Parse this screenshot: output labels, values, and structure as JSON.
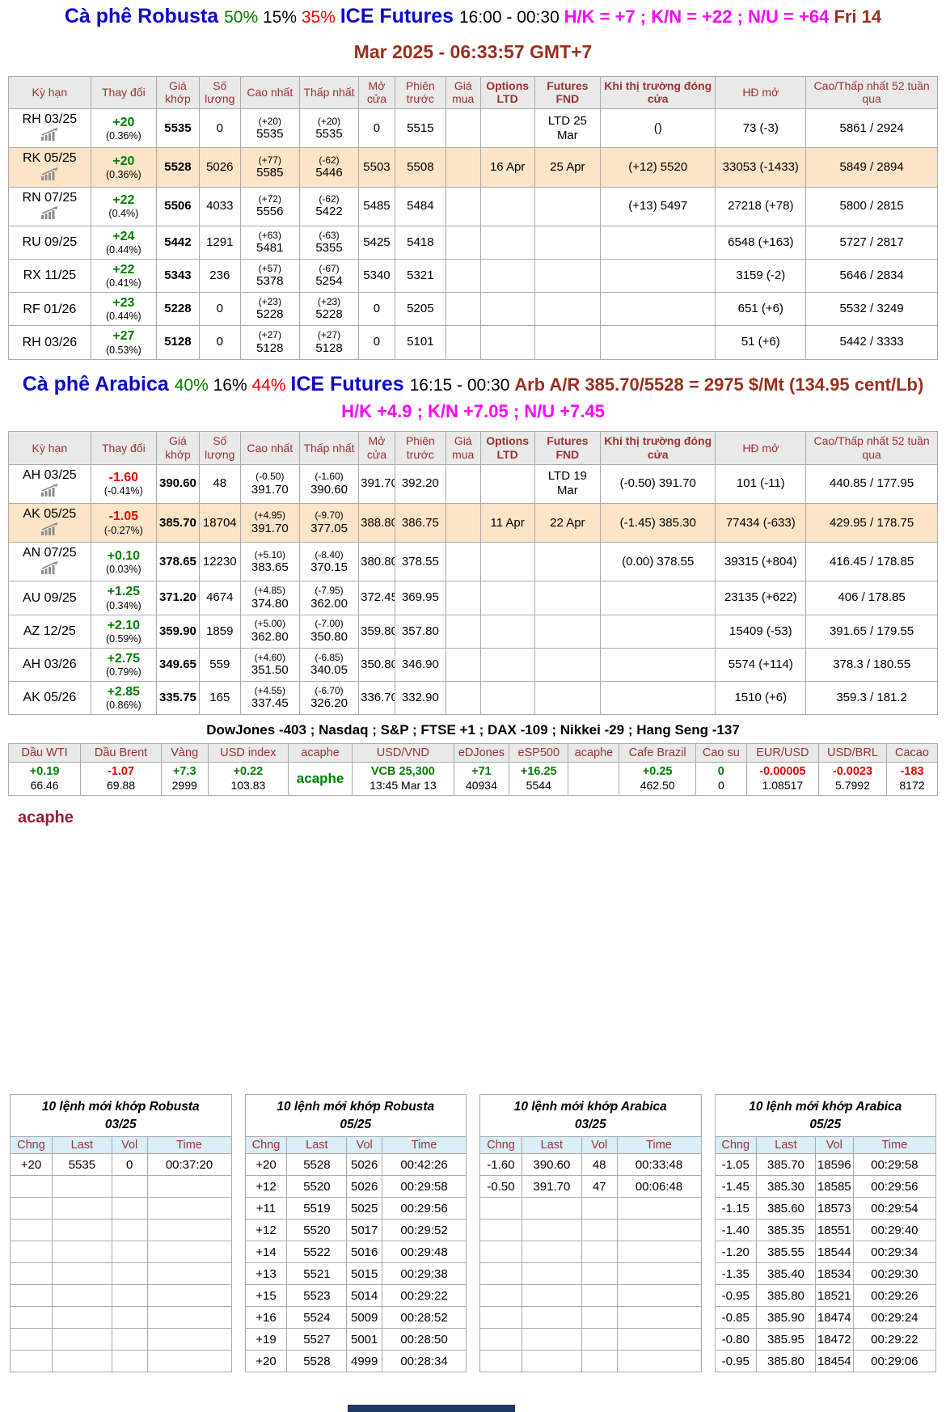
{
  "theme": {
    "blue": "#0b0bcc",
    "green": "#008000",
    "red": "#ee0000",
    "magenta": "#ff00ff",
    "brown": "#99301e",
    "header_red": "#993333",
    "row_highlight": "#fbe4c8",
    "table_header_bg": "#e9e9e9",
    "order_header_bg": "#d9eef7",
    "footer_navy": "#203864"
  },
  "robusta": {
    "headline": {
      "segments": [
        {
          "text": "Cà phê Robusta ",
          "cls": "blue big"
        },
        {
          "text": "50% ",
          "cls": "green"
        },
        {
          "text": "15% ",
          "cls": "black"
        },
        {
          "text": "35% ",
          "cls": "red"
        },
        {
          "text": "ICE Futures ",
          "cls": "blue big"
        },
        {
          "text": "16:00 - 00:30 ",
          "cls": "black"
        },
        {
          "text": "H/K = +7 ; K/N = +22 ; N/U = +64 ",
          "cls": "magenta"
        },
        {
          "text": "Fri 14",
          "cls": "brown"
        }
      ],
      "line2": "Mar 2025 - 06:33:57 GMT+7"
    },
    "table": {
      "headers": [
        {
          "label": "Kỳ hạn",
          "bold": false
        },
        {
          "label": "Thay đổi",
          "bold": false
        },
        {
          "label": "Giá khớp",
          "bold": false
        },
        {
          "label": "Số lượng",
          "bold": false
        },
        {
          "label": "Cao nhất",
          "bold": false
        },
        {
          "label": "Thấp nhất",
          "bold": false
        },
        {
          "label": "Mở cửa",
          "bold": false
        },
        {
          "label": "Phiên trước",
          "bold": false
        },
        {
          "label": "Giá mua",
          "bold": false
        },
        {
          "label": "Options LTD",
          "bold": true
        },
        {
          "label": "Futures FND",
          "bold": true
        },
        {
          "label": "Khi thị trường đóng cửa",
          "bold": true
        },
        {
          "label": "HĐ mở",
          "bold": false
        },
        {
          "label": "Cao/Thấp nhất 52 tuần qua",
          "bold": false
        }
      ],
      "rows": [
        {
          "contract": "RH 03/25",
          "icon": true,
          "dir": "up",
          "chg": "+20",
          "pct": "(0.36%)",
          "last": "5535",
          "vol": "0",
          "hi_n": "(+20)",
          "hi": "5535",
          "lo_n": "(+20)",
          "lo": "5535",
          "open": "0",
          "prev": "5515",
          "buy": "",
          "opt": "",
          "fnd": "LTD 25 Mar",
          "close": "()",
          "oi": "73 (-3)",
          "wk": "5861 / 2924",
          "hl": false
        },
        {
          "contract": "RK 05/25",
          "icon": true,
          "dir": "up",
          "chg": "+20",
          "pct": "(0.36%)",
          "last": "5528",
          "vol": "5026",
          "hi_n": "(+77)",
          "hi": "5585",
          "lo_n": "(-62)",
          "lo": "5446",
          "open": "5503",
          "prev": "5508",
          "buy": "",
          "opt": "16 Apr",
          "fnd": "25 Apr",
          "close": "(+12) 5520",
          "oi": "33053 (-1433)",
          "wk": "5849 / 2894",
          "hl": true
        },
        {
          "contract": "RN 07/25",
          "icon": true,
          "dir": "up",
          "chg": "+22",
          "pct": "(0.4%)",
          "last": "5506",
          "vol": "4033",
          "hi_n": "(+72)",
          "hi": "5556",
          "lo_n": "(-62)",
          "lo": "5422",
          "open": "5485",
          "prev": "5484",
          "buy": "",
          "opt": "",
          "fnd": "",
          "close": "(+13) 5497",
          "oi": "27218 (+78)",
          "wk": "5800 / 2815",
          "hl": false
        },
        {
          "contract": "RU 09/25",
          "icon": false,
          "dir": "up",
          "chg": "+24",
          "pct": "(0.44%)",
          "last": "5442",
          "vol": "1291",
          "hi_n": "(+63)",
          "hi": "5481",
          "lo_n": "(-63)",
          "lo": "5355",
          "open": "5425",
          "prev": "5418",
          "buy": "",
          "opt": "",
          "fnd": "",
          "close": "",
          "oi": "6548 (+163)",
          "wk": "5727 / 2817",
          "hl": false
        },
        {
          "contract": "RX 11/25",
          "icon": false,
          "dir": "up",
          "chg": "+22",
          "pct": "(0.41%)",
          "last": "5343",
          "vol": "236",
          "hi_n": "(+57)",
          "hi": "5378",
          "lo_n": "(-67)",
          "lo": "5254",
          "open": "5340",
          "prev": "5321",
          "buy": "",
          "opt": "",
          "fnd": "",
          "close": "",
          "oi": "3159 (-2)",
          "wk": "5646 / 2834",
          "hl": false
        },
        {
          "contract": "RF 01/26",
          "icon": false,
          "dir": "up",
          "chg": "+23",
          "pct": "(0.44%)",
          "last": "5228",
          "vol": "0",
          "hi_n": "(+23)",
          "hi": "5228",
          "lo_n": "(+23)",
          "lo": "5228",
          "open": "0",
          "prev": "5205",
          "buy": "",
          "opt": "",
          "fnd": "",
          "close": "",
          "oi": "651 (+6)",
          "wk": "5532 / 3249",
          "hl": false
        },
        {
          "contract": "RH 03/26",
          "icon": false,
          "dir": "up",
          "chg": "+27",
          "pct": "(0.53%)",
          "last": "5128",
          "vol": "0",
          "hi_n": "(+27)",
          "hi": "5128",
          "lo_n": "(+27)",
          "lo": "5128",
          "open": "0",
          "prev": "5101",
          "buy": "",
          "opt": "",
          "fnd": "",
          "close": "",
          "oi": "51 (+6)",
          "wk": "5442 / 3333",
          "hl": false
        }
      ]
    }
  },
  "arabica": {
    "headline": {
      "segments": [
        {
          "text": "Cà phê Arabica ",
          "cls": "blue big"
        },
        {
          "text": "40% ",
          "cls": "green"
        },
        {
          "text": "16% ",
          "cls": "black"
        },
        {
          "text": "44% ",
          "cls": "red"
        },
        {
          "text": "ICE Futures ",
          "cls": "blue big"
        },
        {
          "text": "16:15 - 00:30 ",
          "cls": "black"
        },
        {
          "text": "Arb A/R 385.70/5528 = 2975 $/Mt (134.95 cent/Lb) ",
          "cls": "brown"
        },
        {
          "text": "H/K +4.9 ; K/N +7.05 ; N/U +7.45",
          "cls": "magenta"
        }
      ]
    },
    "table": {
      "headers": [
        {
          "label": "Kỳ hạn",
          "bold": false
        },
        {
          "label": "Thay đổi",
          "bold": false
        },
        {
          "label": "Giá khớp",
          "bold": false
        },
        {
          "label": "Số lượng",
          "bold": false
        },
        {
          "label": "Cao nhất",
          "bold": false
        },
        {
          "label": "Thấp nhất",
          "bold": false
        },
        {
          "label": "Mở cửa",
          "bold": false
        },
        {
          "label": "Phiên trước",
          "bold": false
        },
        {
          "label": "Giá mua",
          "bold": false
        },
        {
          "label": "Options LTD",
          "bold": true
        },
        {
          "label": "Futures FND",
          "bold": true
        },
        {
          "label": "Khi thị trường đóng cửa",
          "bold": true
        },
        {
          "label": "HĐ mở",
          "bold": false
        },
        {
          "label": "Cao/Thấp nhất 52 tuần qua",
          "bold": false
        }
      ],
      "rows": [
        {
          "contract": "AH 03/25",
          "icon": true,
          "dir": "down",
          "chg": "-1.60",
          "pct": "(-0.41%)",
          "last": "390.60",
          "vol": "48",
          "hi_n": "(-0.50)",
          "hi": "391.70",
          "lo_n": "(-1.60)",
          "lo": "390.60",
          "open": "391.70",
          "prev": "392.20",
          "buy": "",
          "opt": "",
          "fnd": "LTD 19 Mar",
          "close": "(-0.50) 391.70",
          "oi": "101 (-11)",
          "wk": "440.85 / 177.95",
          "hl": false
        },
        {
          "contract": "AK 05/25",
          "icon": true,
          "dir": "down",
          "chg": "-1.05",
          "pct": "(-0.27%)",
          "last": "385.70",
          "vol": "18704",
          "hi_n": "(+4.95)",
          "hi": "391.70",
          "lo_n": "(-9.70)",
          "lo": "377.05",
          "open": "388.80",
          "prev": "386.75",
          "buy": "",
          "opt": "11 Apr",
          "fnd": "22 Apr",
          "close": "(-1.45) 385.30",
          "oi": "77434 (-633)",
          "wk": "429.95 / 178.75",
          "hl": true
        },
        {
          "contract": "AN 07/25",
          "icon": true,
          "dir": "up",
          "chg": "+0.10",
          "pct": "(0.03%)",
          "last": "378.65",
          "vol": "12230",
          "hi_n": "(+5.10)",
          "hi": "383.65",
          "lo_n": "(-8.40)",
          "lo": "370.15",
          "open": "380.80",
          "prev": "378.55",
          "buy": "",
          "opt": "",
          "fnd": "",
          "close": "(0.00) 378.55",
          "oi": "39315 (+804)",
          "wk": "416.45 / 178.85",
          "hl": false
        },
        {
          "contract": "AU 09/25",
          "icon": false,
          "dir": "up",
          "chg": "+1.25",
          "pct": "(0.34%)",
          "last": "371.20",
          "vol": "4674",
          "hi_n": "(+4.85)",
          "hi": "374.80",
          "lo_n": "(-7.95)",
          "lo": "362.00",
          "open": "372.45",
          "prev": "369.95",
          "buy": "",
          "opt": "",
          "fnd": "",
          "close": "",
          "oi": "23135 (+622)",
          "wk": "406 / 178.85",
          "hl": false
        },
        {
          "contract": "AZ 12/25",
          "icon": false,
          "dir": "up",
          "chg": "+2.10",
          "pct": "(0.59%)",
          "last": "359.90",
          "vol": "1859",
          "hi_n": "(+5.00)",
          "hi": "362.80",
          "lo_n": "(-7.00)",
          "lo": "350.80",
          "open": "359.80",
          "prev": "357.80",
          "buy": "",
          "opt": "",
          "fnd": "",
          "close": "",
          "oi": "15409 (-53)",
          "wk": "391.65 / 179.55",
          "hl": false
        },
        {
          "contract": "AH 03/26",
          "icon": false,
          "dir": "up",
          "chg": "+2.75",
          "pct": "(0.79%)",
          "last": "349.65",
          "vol": "559",
          "hi_n": "(+4.60)",
          "hi": "351.50",
          "lo_n": "(-6.85)",
          "lo": "340.05",
          "open": "350.80",
          "prev": "346.90",
          "buy": "",
          "opt": "",
          "fnd": "",
          "close": "",
          "oi": "5574 (+114)",
          "wk": "378.3 / 180.55",
          "hl": false
        },
        {
          "contract": "AK 05/26",
          "icon": false,
          "dir": "up",
          "chg": "+2.85",
          "pct": "(0.86%)",
          "last": "335.75",
          "vol": "165",
          "hi_n": "(+4.55)",
          "hi": "337.45",
          "lo_n": "(-6.70)",
          "lo": "326.20",
          "open": "336.70",
          "prev": "332.90",
          "buy": "",
          "opt": "",
          "fnd": "",
          "close": "",
          "oi": "1510 (+6)",
          "wk": "359.3 / 181.2",
          "hl": false
        }
      ]
    }
  },
  "indices_line": "DowJones -403 ; Nasdaq ; S&P ; FTSE +1 ; DAX -109 ; Nikkei -29 ; Hang Seng -137",
  "indicators": [
    {
      "label": "Dầu WTI",
      "change": "+0.19",
      "dir": "up",
      "value": "66.46"
    },
    {
      "label": "Dầu Brent",
      "change": "-1.07",
      "dir": "down",
      "value": "69.88"
    },
    {
      "label": "Vàng",
      "change": "+7.3",
      "dir": "up",
      "value": "2999"
    },
    {
      "label": "USD index",
      "change": "+0.22",
      "dir": "up",
      "value": "103.83"
    },
    {
      "label": "acaphe",
      "change": "acaphe",
      "dir": "brand",
      "value": ""
    },
    {
      "label": "USD/VND",
      "change": "VCB 25,300",
      "dir": "up",
      "value": "13:45 Mar 13"
    },
    {
      "label": "eDJones",
      "change": "+71",
      "dir": "up",
      "value": "40934"
    },
    {
      "label": "eSP500",
      "change": "+16.25",
      "dir": "up",
      "value": "5544"
    },
    {
      "label": "acaphe",
      "change": "",
      "dir": "up",
      "value": ""
    },
    {
      "label": "Cafe Brazil",
      "change": "+0.25",
      "dir": "up",
      "value": "462.50"
    },
    {
      "label": "Cao su",
      "change": "0",
      "dir": "up",
      "value": "0"
    },
    {
      "label": "EUR/USD",
      "change": "-0.00005",
      "dir": "down",
      "value": "1.08517"
    },
    {
      "label": "USD/BRL",
      "change": "-0.0023",
      "dir": "down",
      "value": "5.7992"
    },
    {
      "label": "Cacao",
      "change": "-183",
      "dir": "down",
      "value": "8172"
    }
  ],
  "acaphe_label": "acaphe",
  "order_tables": [
    {
      "title_line1": "10 lệnh mới khớp Robusta",
      "title_line2": "03/25",
      "headers": [
        "Chng",
        "Last",
        "Vol",
        "Time"
      ],
      "rows": [
        [
          "+20",
          "5535",
          "0",
          "00:37:20"
        ]
      ]
    },
    {
      "title_line1": "10 lệnh mới khớp Robusta",
      "title_line2": "05/25",
      "headers": [
        "Chng",
        "Last",
        "Vol",
        "Time"
      ],
      "rows": [
        [
          "+20",
          "5528",
          "5026",
          "00:42:26"
        ],
        [
          "+12",
          "5520",
          "5026",
          "00:29:58"
        ],
        [
          "+11",
          "5519",
          "5025",
          "00:29:56"
        ],
        [
          "+12",
          "5520",
          "5017",
          "00:29:52"
        ],
        [
          "+14",
          "5522",
          "5016",
          "00:29:48"
        ],
        [
          "+13",
          "5521",
          "5015",
          "00:29:38"
        ],
        [
          "+15",
          "5523",
          "5014",
          "00:29:22"
        ],
        [
          "+16",
          "5524",
          "5009",
          "00:28:52"
        ],
        [
          "+19",
          "5527",
          "5001",
          "00:28:50"
        ],
        [
          "+20",
          "5528",
          "4999",
          "00:28:34"
        ]
      ]
    },
    {
      "title_line1": "10 lệnh mới khớp Arabica",
      "title_line2": "03/25",
      "headers": [
        "Chng",
        "Last",
        "Vol",
        "Time"
      ],
      "rows": [
        [
          "-1.60",
          "390.60",
          "48",
          "00:33:48"
        ],
        [
          "-0.50",
          "391.70",
          "47",
          "00:06:48"
        ]
      ]
    },
    {
      "title_line1": "10 lệnh mới khớp Arabica",
      "title_line2": "05/25",
      "headers": [
        "Chng",
        "Last",
        "Vol",
        "Time"
      ],
      "rows": [
        [
          "-1.05",
          "385.70",
          "18596",
          "00:29:58"
        ],
        [
          "-1.45",
          "385.30",
          "18585",
          "00:29:56"
        ],
        [
          "-1.15",
          "385.60",
          "18573",
          "00:29:54"
        ],
        [
          "-1.40",
          "385.35",
          "18551",
          "00:29:40"
        ],
        [
          "-1.20",
          "385.55",
          "18544",
          "00:29:34"
        ],
        [
          "-1.35",
          "385.40",
          "18534",
          "00:29:30"
        ],
        [
          "-0.95",
          "385.80",
          "18521",
          "00:29:26"
        ],
        [
          "-0.85",
          "385.90",
          "18474",
          "00:29:24"
        ],
        [
          "-0.80",
          "385.95",
          "18472",
          "00:29:22"
        ],
        [
          "-0.95",
          "385.80",
          "18454",
          "00:29:06"
        ]
      ]
    }
  ]
}
